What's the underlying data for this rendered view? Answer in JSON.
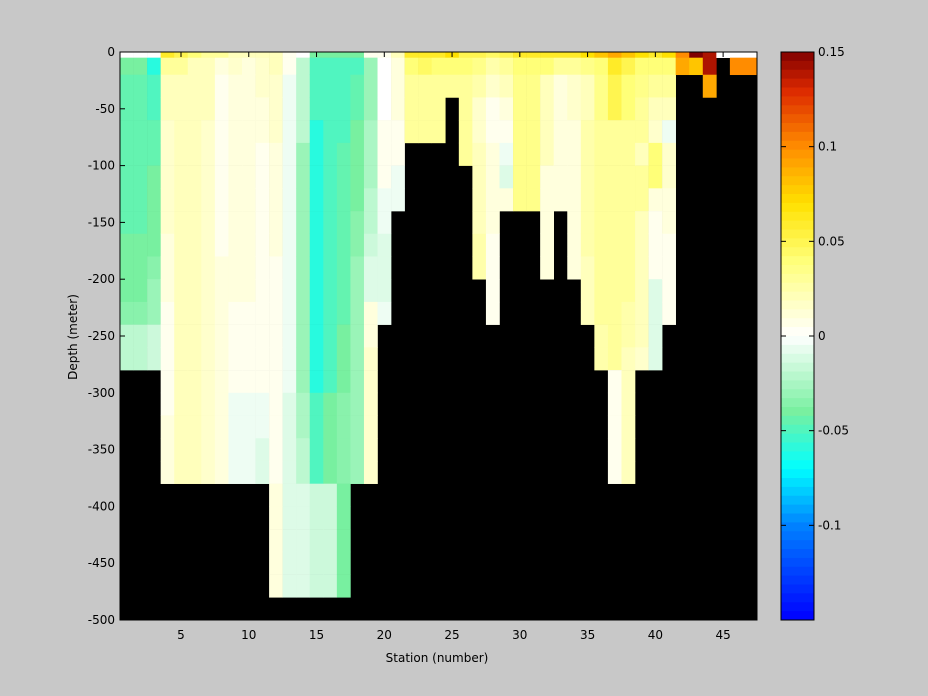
{
  "chart_data": {
    "type": "heatmap",
    "title": "",
    "xlabel": "Station (number)",
    "ylabel": "Depth (meter)",
    "xlim": [
      1,
      47
    ],
    "ylim": [
      -500,
      0
    ],
    "x_ticks": [
      "5",
      "10",
      "15",
      "20",
      "25",
      "30",
      "35",
      "40",
      "45"
    ],
    "y_ticks": [
      "0",
      "-50",
      "-100",
      "-150",
      "-200",
      "-250",
      "-300",
      "-350",
      "-400",
      "-450",
      "-500"
    ],
    "colorbar": {
      "clim": [
        -0.15,
        0.15
      ],
      "ticks": [
        "0.15",
        "0.1",
        "0.05",
        "0",
        "-0.05",
        "-0.1"
      ],
      "colormap": "jet-white-centered"
    },
    "background_color": "#000000",
    "depth_levels": [
      -5,
      -20,
      -40,
      -60,
      -80,
      -100,
      -120,
      -140,
      -160,
      -180,
      -200,
      -220,
      -240,
      -260,
      -280,
      -300,
      -320,
      -340,
      -360,
      -380,
      -400,
      -420,
      -440,
      -460,
      -480,
      -500
    ],
    "stations": [
      {
        "station": 1,
        "bottom": -300,
        "values": [
          0,
          -0.04,
          -0.045,
          -0.045,
          -0.045,
          -0.045,
          -0.045,
          -0.045,
          -0.045,
          -0.04,
          -0.04,
          -0.04,
          -0.035,
          -0.02,
          -0.02
        ]
      },
      {
        "station": 2,
        "bottom": -300,
        "values": [
          0,
          -0.04,
          -0.045,
          -0.045,
          -0.045,
          -0.045,
          -0.045,
          -0.045,
          -0.045,
          -0.04,
          -0.04,
          -0.04,
          -0.035,
          -0.02,
          -0.02
        ]
      },
      {
        "station": 3,
        "bottom": -300,
        "values": [
          0,
          -0.06,
          -0.05,
          -0.05,
          -0.045,
          -0.045,
          -0.04,
          -0.04,
          -0.04,
          -0.04,
          -0.035,
          -0.03,
          -0.03,
          -0.015,
          -0.015
        ]
      },
      {
        "station": 4,
        "bottom": -400,
        "values": [
          0.06,
          0.03,
          0.02,
          0.02,
          0.015,
          0.015,
          0.015,
          0.015,
          0.015,
          0.01,
          0.01,
          0.01,
          0.005,
          0.005,
          0.005,
          0.005,
          0.005,
          0.01,
          0.01,
          0.01
        ]
      },
      {
        "station": 5,
        "bottom": -400,
        "values": [
          0.05,
          0.03,
          0.02,
          0.02,
          0.02,
          0.02,
          0.02,
          0.02,
          0.02,
          0.02,
          0.02,
          0.02,
          0.02,
          0.02,
          0.02,
          0.02,
          0.02,
          0.02,
          0.02,
          0.02
        ]
      },
      {
        "station": 6,
        "bottom": -400,
        "values": [
          0.04,
          0.02,
          0.02,
          0.02,
          0.02,
          0.02,
          0.02,
          0.02,
          0.02,
          0.02,
          0.02,
          0.02,
          0.02,
          0.02,
          0.02,
          0.02,
          0.02,
          0.02,
          0.02,
          0.02
        ]
      },
      {
        "station": 7,
        "bottom": -400,
        "values": [
          0.03,
          0.02,
          0.02,
          0.02,
          0.015,
          0.015,
          0.015,
          0.015,
          0.015,
          0.015,
          0.015,
          0.015,
          0.015,
          0.015,
          0.015,
          0.015,
          0.015,
          0.015,
          0.015,
          0.015
        ]
      },
      {
        "station": 8,
        "bottom": -400,
        "values": [
          0.03,
          0.01,
          0.005,
          0.005,
          0.005,
          0.005,
          0.005,
          0.005,
          0.005,
          0.005,
          0.01,
          0.01,
          0.01,
          0.01,
          0.01,
          0.01,
          0.01,
          0.01,
          0.01,
          0.01
        ]
      },
      {
        "station": 9,
        "bottom": -400,
        "values": [
          0.02,
          0.015,
          0.01,
          0.01,
          0.01,
          0.01,
          0.01,
          0.01,
          0.01,
          0.01,
          0.01,
          0.01,
          0.005,
          0.005,
          0.005,
          0.005,
          -0.005,
          -0.005,
          -0.005,
          -0.005
        ]
      },
      {
        "station": 10,
        "bottom": -400,
        "values": [
          0.02,
          0.01,
          0.01,
          0.01,
          0.01,
          0.01,
          0.01,
          0.01,
          0.01,
          0.01,
          0.01,
          0.01,
          0.005,
          0.005,
          0.005,
          0.005,
          -0.005,
          -0.005,
          -0.005,
          -0.005
        ]
      },
      {
        "station": 11,
        "bottom": -400,
        "values": [
          0.02,
          0.015,
          0.015,
          0.01,
          0.01,
          0.005,
          0.005,
          0.005,
          0.005,
          0.005,
          0.005,
          0.005,
          0.005,
          0.005,
          0.005,
          0.005,
          -0.005,
          -0.005,
          -0.01,
          -0.01
        ]
      },
      {
        "station": 12,
        "bottom": -500,
        "values": [
          0.02,
          0.02,
          0.015,
          0.015,
          0.015,
          0.01,
          0.01,
          0.01,
          0.01,
          0.01,
          0.005,
          0.005,
          0.005,
          0.005,
          0.005,
          0.005,
          0.005,
          0.005,
          0.005,
          0.005,
          0.01,
          0.01,
          0.01,
          0.01,
          0.01
        ]
      },
      {
        "station": 13,
        "bottom": -500,
        "values": [
          0.005,
          0.005,
          -0.005,
          -0.005,
          -0.005,
          -0.005,
          -0.005,
          -0.005,
          -0.005,
          -0.005,
          -0.005,
          -0.005,
          -0.005,
          -0.005,
          -0.005,
          -0.005,
          -0.01,
          -0.01,
          -0.01,
          -0.01,
          -0.01,
          -0.01,
          -0.01,
          -0.01,
          -0.01
        ]
      },
      {
        "station": 14,
        "bottom": -500,
        "values": [
          0,
          -0.02,
          -0.02,
          -0.02,
          -0.02,
          -0.03,
          -0.03,
          -0.03,
          -0.03,
          -0.03,
          -0.03,
          -0.03,
          -0.03,
          -0.03,
          -0.03,
          -0.03,
          -0.025,
          -0.025,
          -0.02,
          -0.02,
          -0.01,
          -0.01,
          -0.01,
          -0.01,
          -0.01
        ]
      },
      {
        "station": 15,
        "bottom": -500,
        "values": [
          -0.04,
          -0.05,
          -0.05,
          -0.05,
          -0.06,
          -0.06,
          -0.06,
          -0.06,
          -0.06,
          -0.06,
          -0.06,
          -0.06,
          -0.06,
          -0.06,
          -0.06,
          -0.06,
          -0.05,
          -0.05,
          -0.05,
          -0.05,
          -0.015,
          -0.015,
          -0.015,
          -0.015,
          -0.015
        ]
      },
      {
        "station": 16,
        "bottom": -500,
        "values": [
          -0.04,
          -0.05,
          -0.05,
          -0.05,
          -0.05,
          -0.05,
          -0.05,
          -0.05,
          -0.05,
          -0.05,
          -0.05,
          -0.05,
          -0.05,
          -0.05,
          -0.05,
          -0.05,
          -0.04,
          -0.04,
          -0.04,
          -0.04,
          -0.015,
          -0.015,
          -0.015,
          -0.015,
          -0.015
        ]
      },
      {
        "station": 17,
        "bottom": -500,
        "values": [
          -0.04,
          -0.05,
          -0.05,
          -0.05,
          -0.05,
          -0.045,
          -0.045,
          -0.045,
          -0.045,
          -0.045,
          -0.045,
          -0.045,
          -0.045,
          -0.04,
          -0.04,
          -0.04,
          -0.035,
          -0.035,
          -0.035,
          -0.035,
          -0.04,
          -0.04,
          -0.04,
          -0.04,
          -0.04
        ]
      },
      {
        "station": 18,
        "bottom": -400,
        "values": [
          -0.04,
          -0.05,
          -0.045,
          -0.045,
          -0.04,
          -0.04,
          -0.04,
          -0.04,
          -0.035,
          -0.035,
          -0.03,
          -0.03,
          -0.03,
          -0.03,
          -0.03,
          -0.03,
          -0.03,
          -0.03,
          -0.03,
          -0.03
        ]
      },
      {
        "station": 19,
        "bottom": -400,
        "values": [
          0.005,
          -0.03,
          -0.03,
          -0.03,
          -0.025,
          -0.025,
          -0.025,
          -0.02,
          -0.02,
          -0.015,
          -0.01,
          -0.01,
          0.01,
          0.01,
          0.015,
          0.015,
          0.015,
          0.015,
          0.015,
          0.015
        ]
      },
      {
        "station": 20,
        "bottom": -250,
        "values": [
          0.005,
          0,
          0,
          0,
          0.005,
          0.005,
          0.005,
          -0.005,
          -0.005,
          -0.01,
          -0.01,
          -0.01,
          -0.005
        ]
      },
      {
        "station": 21,
        "bottom": -150,
        "values": [
          0.02,
          0.01,
          0.01,
          0.01,
          0.005,
          0.005,
          -0.005,
          -0.005
        ]
      },
      {
        "station": 22,
        "bottom": -75,
        "values": [
          0.06,
          0.04,
          0.03,
          0.03,
          0.03
        ]
      },
      {
        "station": 23,
        "bottom": -75,
        "values": [
          0.06,
          0.045,
          0.03,
          0.03,
          0.03
        ]
      },
      {
        "station": 24,
        "bottom": -75,
        "values": [
          0.06,
          0.04,
          0.03,
          0.03,
          0.03
        ]
      },
      {
        "station": 25,
        "bottom": -50,
        "values": [
          0.07,
          0.04,
          0.03
        ]
      },
      {
        "station": 26,
        "bottom": -100,
        "values": [
          0.05,
          0.04,
          0.03,
          0.03,
          0.03,
          0.03
        ]
      },
      {
        "station": 27,
        "bottom": -200,
        "values": [
          0.05,
          0.035,
          0.025,
          0.015,
          0.015,
          0.02,
          0.02,
          0.02,
          0.02,
          0.025,
          0.025
        ]
      },
      {
        "station": 28,
        "bottom": -250,
        "values": [
          0.045,
          0.025,
          0.015,
          0.005,
          0.005,
          0.01,
          0.01,
          0.01,
          0.01,
          0.005,
          0.005,
          0.005,
          0.005
        ]
      },
      {
        "station": 29,
        "bottom": -150,
        "values": [
          0.05,
          0.03,
          0.02,
          0.01,
          0.005,
          -0.005,
          -0.01,
          0.01
        ]
      },
      {
        "station": 30,
        "bottom": -150,
        "values": [
          0.06,
          0.04,
          0.035,
          0.035,
          0.035,
          0.035,
          0.035,
          0.035
        ]
      },
      {
        "station": 31,
        "bottom": -150,
        "values": [
          0.06,
          0.04,
          0.035,
          0.035,
          0.035,
          0.035,
          0.035,
          0.035
        ]
      },
      {
        "station": 32,
        "bottom": -200,
        "values": [
          0.06,
          0.04,
          0.02,
          0.02,
          0.02,
          0.02,
          0.01,
          0.01,
          0.01,
          0.01,
          0.01
        ]
      },
      {
        "station": 33,
        "bottom": -150,
        "values": [
          0.06,
          0.03,
          0.01,
          0.01,
          0.01,
          0.01,
          0.01,
          0.01
        ]
      },
      {
        "station": 34,
        "bottom": -200,
        "values": [
          0.06,
          0.03,
          0.015,
          0.015,
          0.01,
          0.01,
          0.01,
          0.01,
          0.01,
          0.01,
          0.01
        ]
      },
      {
        "station": 35,
        "bottom": -250,
        "values": [
          0.07,
          0.035,
          0.02,
          0.02,
          0.025,
          0.025,
          0.025,
          0.025,
          0.025,
          0.025,
          0.02,
          0.02,
          0.02
        ]
      },
      {
        "station": 36,
        "bottom": -300,
        "values": [
          0.08,
          0.04,
          0.035,
          0.035,
          0.03,
          0.03,
          0.03,
          0.03,
          0.03,
          0.03,
          0.03,
          0.03,
          0.03,
          0.025,
          0.025
        ]
      },
      {
        "station": 37,
        "bottom": -400,
        "values": [
          0.09,
          0.06,
          0.05,
          0.05,
          0.03,
          0.03,
          0.03,
          0.03,
          0.03,
          0.03,
          0.03,
          0.03,
          0.03,
          0.03,
          0.03,
          0.005,
          0.005,
          0.005,
          0.005,
          0.005
        ]
      },
      {
        "station": 38,
        "bottom": -400,
        "values": [
          0.08,
          0.05,
          0.04,
          0.04,
          0.03,
          0.03,
          0.03,
          0.03,
          0.03,
          0.03,
          0.03,
          0.03,
          0.025,
          0.025,
          0.02,
          0.02,
          0.02,
          0.02,
          0.02,
          0.02
        ]
      },
      {
        "station": 39,
        "bottom": -300,
        "values": [
          0.07,
          0.04,
          0.035,
          0.03,
          0.03,
          0.02,
          0.03,
          0.03,
          0.02,
          0.02,
          0.02,
          0.02,
          0.02,
          0.02,
          0.015
        ]
      },
      {
        "station": 40,
        "bottom": -300,
        "values": [
          0.06,
          0.04,
          0.03,
          0.02,
          0.015,
          0.04,
          0.04,
          0.01,
          0.005,
          0.005,
          0.005,
          -0.01,
          -0.01,
          -0.01,
          -0.01
        ]
      },
      {
        "station": 41,
        "bottom": -250,
        "values": [
          0.07,
          0.04,
          0.03,
          0.02,
          -0.005,
          0.015,
          0.015,
          0.01,
          0.01,
          0.005,
          0.005,
          0.005,
          0.005
        ]
      },
      {
        "station": 42,
        "bottom": -25,
        "values": [
          0.1,
          0.09
        ]
      },
      {
        "station": 43,
        "bottom": -25,
        "values": [
          0.15,
          0.08
        ]
      },
      {
        "station": 44,
        "bottom": -50,
        "values": [
          0.14,
          0.14,
          0.09
        ]
      },
      {
        "station": 45,
        "bottom": -5,
        "values": [
          0
        ]
      },
      {
        "station": 46,
        "bottom": -20,
        "values": [
          0,
          0.1
        ]
      },
      {
        "station": 47,
        "bottom": -20,
        "values": [
          0,
          0.1
        ]
      }
    ]
  }
}
